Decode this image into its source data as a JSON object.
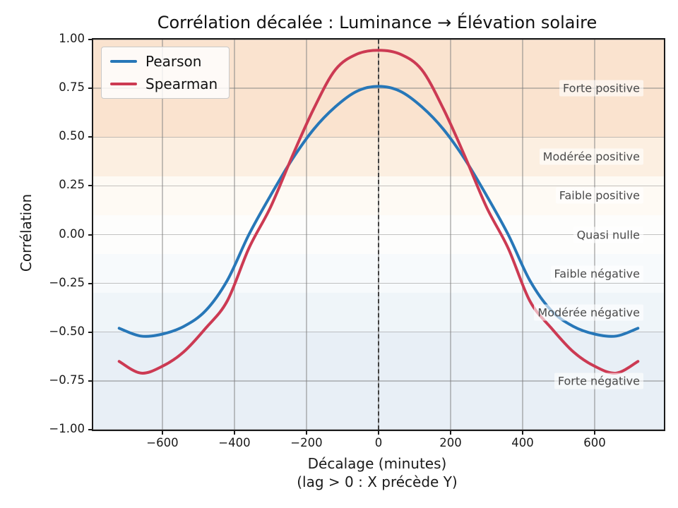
{
  "chart_data": {
    "type": "line",
    "title": "Corrélation décalée : Luminance → Élévation solaire",
    "xlabel": "Décalage (minutes)",
    "xlabel_note": "(lag > 0 : X précède Y)",
    "ylabel": "Corrélation",
    "xlim": [
      -792,
      792
    ],
    "ylim": [
      -1,
      1
    ],
    "grid": true,
    "legend_position": "upper left",
    "x_ticks": [
      -600,
      -400,
      -200,
      0,
      200,
      400,
      600
    ],
    "x_tick_labels": [
      "−600",
      "−400",
      "−200",
      "0",
      "200",
      "400",
      "600"
    ],
    "y_ticks": [
      1.0,
      0.75,
      0.5,
      0.25,
      0.0,
      -0.25,
      -0.5,
      -0.75,
      -1.0
    ],
    "y_tick_labels": [
      "1.00",
      "0.75",
      "0.50",
      "0.25",
      "0.00",
      "−0.25",
      "−0.50",
      "−0.75",
      "−1.00"
    ],
    "x": [
      -720,
      -660,
      -600,
      -540,
      -480,
      -420,
      -360,
      -300,
      -240,
      -180,
      -120,
      -60,
      0,
      60,
      120,
      180,
      240,
      300,
      360,
      420,
      480,
      540,
      600,
      660,
      720
    ],
    "series": [
      {
        "name": "Pearson",
        "color": "#2777b8",
        "values": [
          -0.48,
          -0.52,
          -0.51,
          -0.47,
          -0.39,
          -0.235,
          0.0,
          0.2,
          0.385,
          0.54,
          0.655,
          0.735,
          0.76,
          0.735,
          0.655,
          0.54,
          0.385,
          0.2,
          0.0,
          -0.235,
          -0.39,
          -0.47,
          -0.51,
          -0.52,
          -0.48
        ]
      },
      {
        "name": "Spearman",
        "color": "#cc3a53",
        "values": [
          -0.65,
          -0.71,
          -0.675,
          -0.6,
          -0.48,
          -0.34,
          -0.07,
          0.14,
          0.4,
          0.645,
          0.845,
          0.925,
          0.945,
          0.925,
          0.845,
          0.645,
          0.4,
          0.14,
          -0.07,
          -0.34,
          -0.48,
          -0.6,
          -0.675,
          -0.71,
          -0.65
        ]
      }
    ],
    "vline": {
      "x": 0,
      "color": "#404040",
      "style": "dashed"
    },
    "bands": [
      {
        "label": "Forte positive",
        "range": [
          0.5,
          1.0
        ],
        "color": "#fae3cf",
        "label_y": 0.75
      },
      {
        "label": "Modérée positive",
        "range": [
          0.3,
          0.5
        ],
        "color": "#fcefe1",
        "label_y": 0.4
      },
      {
        "label": "Faible positive",
        "range": [
          0.1,
          0.3
        ],
        "color": "#fefaf4",
        "label_y": 0.2
      },
      {
        "label": "Quasi nulle",
        "range": [
          -0.1,
          0.1
        ],
        "color": "#fdfdfc",
        "label_y": 0.0
      },
      {
        "label": "Faible négative",
        "range": [
          -0.3,
          -0.1
        ],
        "color": "#f7fafc",
        "label_y": -0.2
      },
      {
        "label": "Modérée négative",
        "range": [
          -0.5,
          -0.3
        ],
        "color": "#eff5f9",
        "label_y": -0.4
      },
      {
        "label": "Forte négative",
        "range": [
          -1.0,
          -0.5
        ],
        "color": "#e8eff6",
        "label_y": -0.75
      }
    ]
  }
}
